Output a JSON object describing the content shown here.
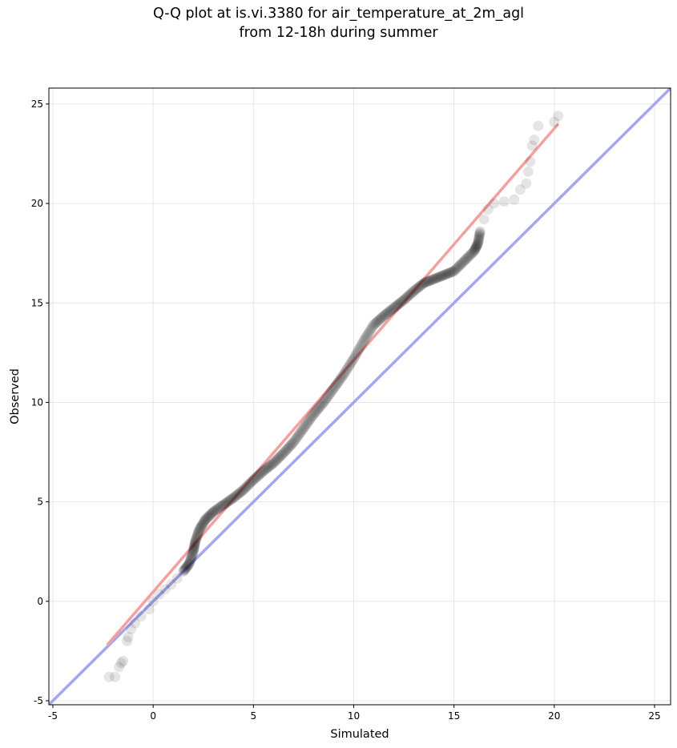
{
  "chart_data": {
    "type": "scatter",
    "title": "Q-Q plot at is.vi.3380 for air_temperature_at_2m_agl",
    "subtitle": "from 12-18h during summer",
    "xlabel": "Simulated",
    "ylabel": "Observed",
    "xlim": [
      -5.2,
      25.8
    ],
    "ylim": [
      -5.2,
      25.8
    ],
    "x_ticks": [
      -5,
      0,
      5,
      10,
      15,
      20,
      25
    ],
    "y_ticks": [
      -5,
      0,
      5,
      10,
      15,
      20,
      25
    ],
    "grid": true,
    "colors": {
      "points": "#000000",
      "fit_line": "#f4a0a0",
      "identity_line": "#a6a6ee",
      "points_overlay_upper": "#8b0000",
      "points_overlay_lower": "#1a1a8a"
    },
    "quantile_curve": [
      [
        -2.2,
        -3.8
      ],
      [
        -1.9,
        -3.8
      ],
      [
        -1.7,
        -3.3
      ],
      [
        -1.6,
        -3.1
      ],
      [
        -1.5,
        -3.0
      ],
      [
        -1.3,
        -2.0
      ],
      [
        -1.25,
        -1.8
      ],
      [
        -1.1,
        -1.4
      ],
      [
        -0.9,
        -1.1
      ],
      [
        -0.6,
        -0.75
      ],
      [
        -0.2,
        -0.4
      ],
      [
        0.0,
        0.0
      ],
      [
        0.3,
        0.35
      ],
      [
        0.6,
        0.6
      ],
      [
        0.9,
        0.85
      ],
      [
        1.2,
        1.15
      ],
      [
        1.5,
        1.5
      ],
      [
        1.8,
        1.9
      ],
      [
        2.0,
        2.5
      ],
      [
        2.1,
        3.0
      ],
      [
        2.3,
        3.6
      ],
      [
        2.6,
        4.1
      ],
      [
        3.0,
        4.5
      ],
      [
        3.5,
        4.85
      ],
      [
        4.0,
        5.2
      ],
      [
        4.5,
        5.6
      ],
      [
        5.0,
        6.1
      ],
      [
        5.5,
        6.55
      ],
      [
        6.0,
        6.95
      ],
      [
        6.5,
        7.45
      ],
      [
        7.0,
        8.0
      ],
      [
        7.5,
        8.7
      ],
      [
        8.0,
        9.4
      ],
      [
        8.5,
        10.0
      ],
      [
        9.0,
        10.7
      ],
      [
        9.5,
        11.4
      ],
      [
        10.0,
        12.2
      ],
      [
        10.5,
        13.1
      ],
      [
        11.0,
        13.9
      ],
      [
        11.5,
        14.35
      ],
      [
        12.0,
        14.75
      ],
      [
        12.5,
        15.15
      ],
      [
        13.0,
        15.6
      ],
      [
        13.5,
        16.0
      ],
      [
        14.0,
        16.2
      ],
      [
        14.5,
        16.4
      ],
      [
        15.0,
        16.6
      ],
      [
        15.5,
        17.1
      ],
      [
        16.0,
        17.6
      ],
      [
        16.2,
        18.0
      ],
      [
        16.3,
        18.6
      ],
      [
        16.5,
        19.2
      ],
      [
        16.7,
        19.7
      ],
      [
        17.0,
        20.0
      ],
      [
        17.5,
        20.1
      ],
      [
        18.0,
        20.2
      ],
      [
        18.3,
        20.7
      ],
      [
        18.6,
        21.0
      ],
      [
        18.7,
        21.6
      ],
      [
        18.8,
        22.1
      ],
      [
        18.9,
        22.9
      ],
      [
        19.0,
        23.2
      ],
      [
        19.2,
        23.9
      ],
      [
        20.0,
        24.1
      ],
      [
        20.2,
        24.4
      ]
    ],
    "fit_line": {
      "x": [
        -2.3,
        20.2
      ],
      "y": [
        -2.2,
        24.0
      ]
    },
    "identity_line": {
      "x": [
        -5.2,
        25.8
      ],
      "y": [
        -5.2,
        25.8
      ]
    }
  }
}
